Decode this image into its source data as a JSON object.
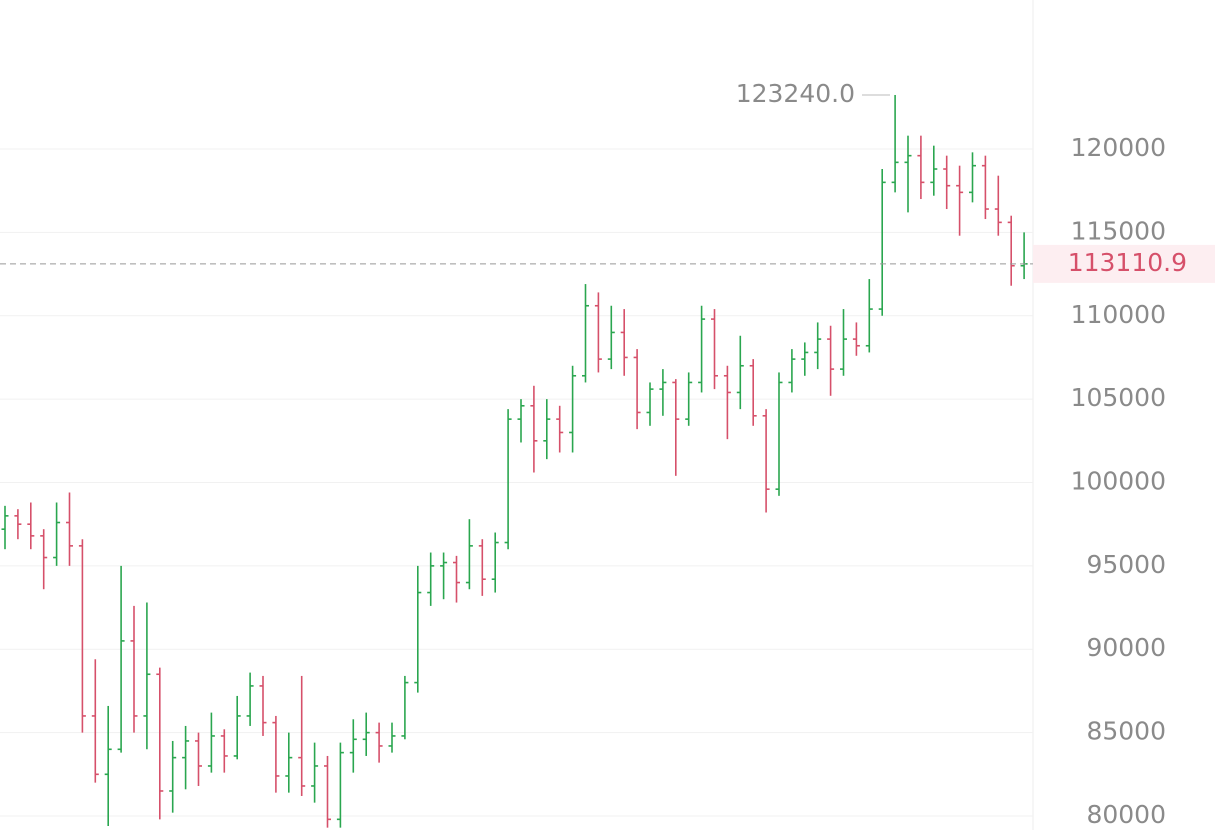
{
  "chart_data": {
    "type": "ohlc",
    "up_color": "#2aa64f",
    "down_color": "#d6506a",
    "grid": true,
    "ylim": [
      79160,
      128936
    ],
    "yticks": [
      80000,
      85000,
      90000,
      95000,
      100000,
      105000,
      110000,
      115000,
      120000
    ],
    "last_price": 113110.9,
    "annotations": [
      {
        "value": 123240,
        "label": "123240.0"
      }
    ],
    "series": [
      {
        "open": [
          97200,
          98000,
          97500,
          96800,
          95500,
          97600,
          96200,
          86000,
          82500,
          84000,
          90500,
          86000,
          88500,
          81500,
          83500,
          84500,
          83000,
          84800,
          83600,
          86000,
          87800,
          85600,
          82400,
          83500,
          81800,
          83000,
          79800,
          83800,
          84600,
          85000,
          84200,
          84800,
          88000,
          93400,
          95000,
          95200,
          94000,
          96200,
          94200,
          96400,
          103800,
          104600,
          102500,
          103800,
          103000,
          106400,
          110600,
          107400,
          109000,
          107500,
          104200,
          105600,
          106000,
          103800,
          106000,
          109800,
          106400,
          105400,
          107000,
          104000,
          99600,
          106000,
          107400,
          107800,
          108600,
          106800,
          108600,
          108200,
          110400,
          118000,
          119200,
          119600,
          118000,
          118800,
          117800,
          117400,
          119000,
          116400,
          115600,
          113000
        ],
        "high": [
          98600,
          98400,
          98800,
          97200,
          98800,
          99400,
          96600,
          89400,
          86600,
          95000,
          92600,
          92800,
          88900,
          84500,
          85400,
          85000,
          86200,
          85200,
          87200,
          88600,
          88400,
          86000,
          85000,
          88400,
          84400,
          83600,
          84400,
          85800,
          86200,
          85600,
          85600,
          88400,
          95000,
          95800,
          95800,
          95600,
          97800,
          96600,
          97000,
          104400,
          105000,
          105800,
          105000,
          104600,
          107000,
          111900,
          111400,
          110600,
          110400,
          108000,
          106000,
          106800,
          106200,
          106600,
          110600,
          110400,
          107000,
          108800,
          107400,
          104400,
          106600,
          108000,
          108400,
          109600,
          109400,
          110400,
          109600,
          112200,
          118800,
          123240,
          120800,
          120800,
          120200,
          119600,
          119000,
          119800,
          119600,
          118400,
          116000,
          115000
        ],
        "low": [
          96000,
          96600,
          96000,
          93600,
          95000,
          95000,
          85000,
          82000,
          79400,
          83800,
          85000,
          84000,
          79800,
          80200,
          81600,
          81800,
          82600,
          82600,
          83400,
          85400,
          84800,
          81400,
          81400,
          81200,
          80800,
          79300,
          79300,
          82600,
          83600,
          83200,
          83800,
          84600,
          87400,
          92600,
          93000,
          92800,
          93600,
          93200,
          93400,
          96000,
          102400,
          100600,
          101400,
          101800,
          101800,
          106000,
          106600,
          106800,
          106400,
          103200,
          103400,
          104000,
          100400,
          103400,
          105400,
          105600,
          102600,
          104400,
          103400,
          98200,
          99200,
          105400,
          106400,
          106800,
          105200,
          106400,
          107600,
          107800,
          110000,
          117400,
          116200,
          117000,
          117200,
          116400,
          114800,
          116800,
          115800,
          114800,
          111800,
          112200
        ],
        "close": [
          98000,
          97500,
          96800,
          95500,
          97600,
          96200,
          86000,
          82500,
          84000,
          90500,
          86000,
          88500,
          81500,
          83500,
          84500,
          83000,
          84800,
          83600,
          86000,
          87800,
          85600,
          82400,
          83500,
          81800,
          83000,
          79800,
          83800,
          84600,
          85000,
          84200,
          84800,
          88000,
          93400,
          95000,
          95200,
          94000,
          96200,
          94200,
          96400,
          103800,
          104600,
          102500,
          103800,
          103000,
          106400,
          110600,
          107400,
          109000,
          107500,
          104200,
          105600,
          106000,
          103800,
          106000,
          109800,
          106400,
          105400,
          107000,
          104000,
          99600,
          106000,
          107400,
          107800,
          108600,
          106800,
          108600,
          108200,
          110400,
          118000,
          119200,
          119600,
          118000,
          118800,
          117800,
          117400,
          119000,
          116400,
          115600,
          113000,
          113110.9
        ]
      }
    ]
  }
}
